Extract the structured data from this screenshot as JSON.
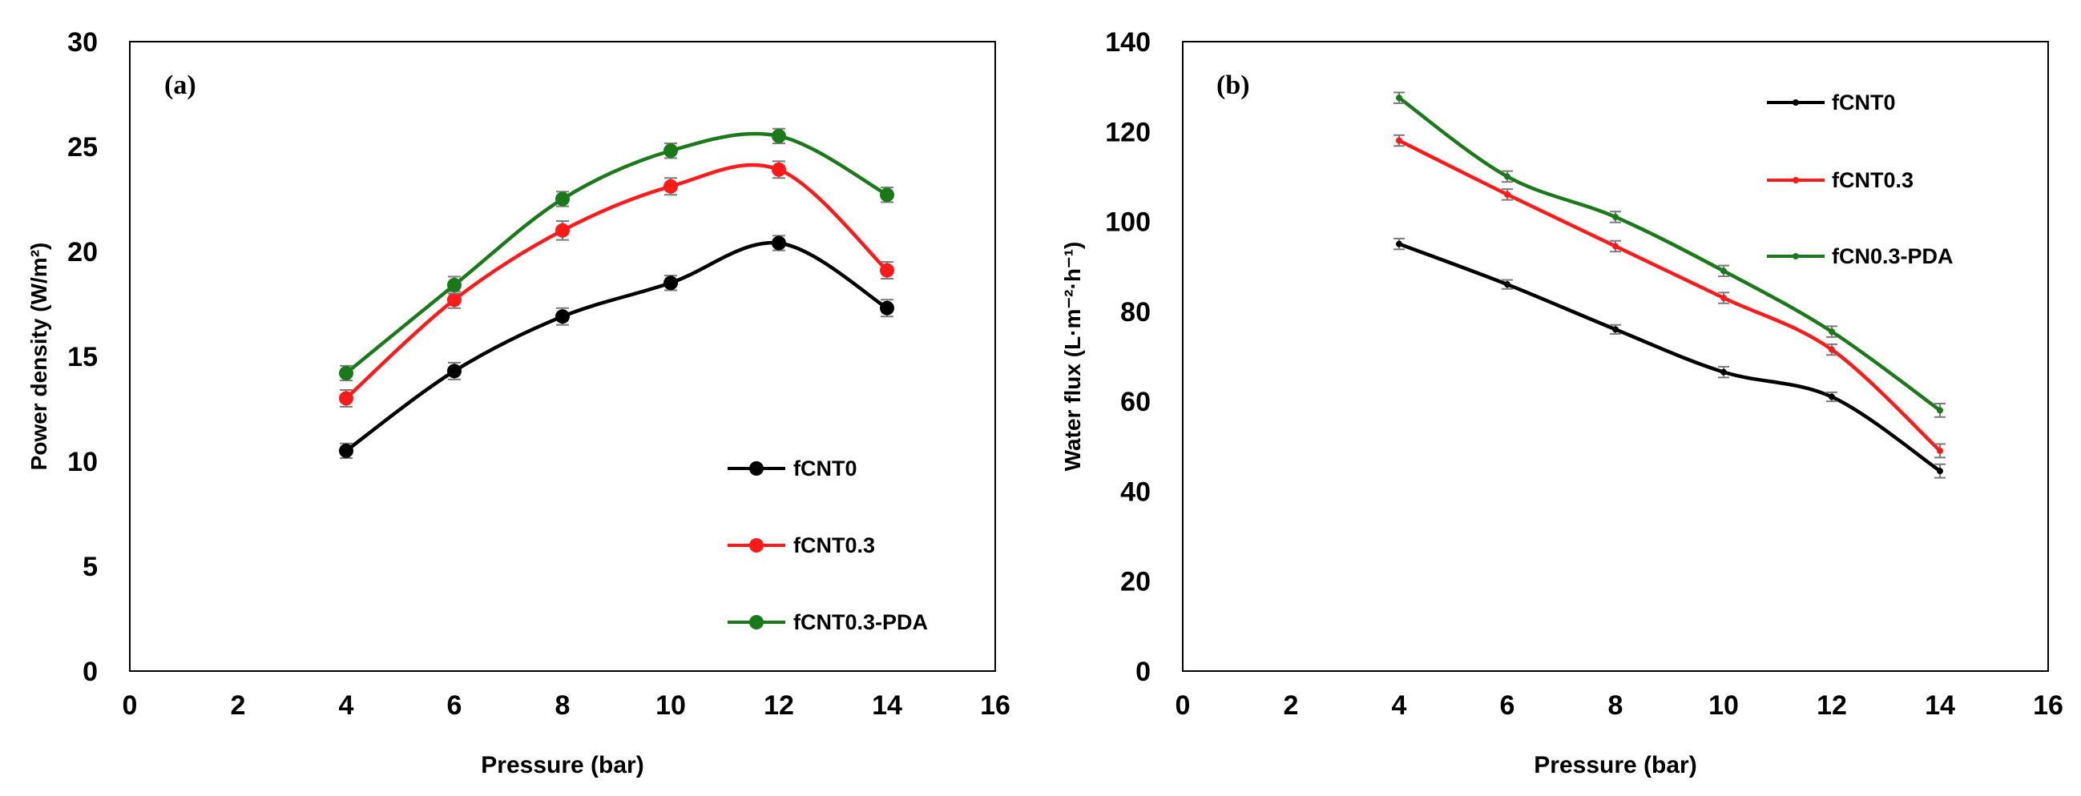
{
  "chart_data": [
    {
      "type": "line",
      "panel_label": "(a)",
      "xlabel": "Pressure (bar)",
      "ylabel": "Power density  (W/m²)",
      "xlim": [
        0,
        16
      ],
      "ylim": [
        0,
        30
      ],
      "xticks": [
        0,
        2,
        4,
        6,
        8,
        10,
        12,
        14,
        16
      ],
      "yticks": [
        0,
        5,
        10,
        15,
        20,
        25,
        30
      ],
      "grid": false,
      "legend_position": "bottom-right",
      "marker": "circle-large",
      "x": [
        4,
        6,
        8,
        10,
        12,
        14
      ],
      "series": [
        {
          "name": "fCNT0",
          "color": "#000000",
          "values": [
            10.5,
            14.3,
            16.9,
            18.5,
            20.4,
            17.3
          ],
          "error": [
            0.35,
            0.4,
            0.4,
            0.35,
            0.35,
            0.4
          ]
        },
        {
          "name": "fCNT0.3",
          "color": "#ff1a1a",
          "values": [
            13.0,
            17.7,
            21.0,
            23.1,
            23.9,
            19.1
          ],
          "error": [
            0.4,
            0.4,
            0.45,
            0.4,
            0.4,
            0.4
          ]
        },
        {
          "name": "fCNT0.3-PDA",
          "color": "#1a7a1a",
          "values": [
            14.2,
            18.4,
            22.5,
            24.8,
            25.5,
            22.7
          ],
          "error": [
            0.35,
            0.4,
            0.35,
            0.35,
            0.35,
            0.35
          ]
        }
      ]
    },
    {
      "type": "line",
      "panel_label": "(b)",
      "xlabel": "Pressure (bar)",
      "ylabel": "Water flux (L·m⁻²·h⁻¹)",
      "xlim": [
        0,
        16
      ],
      "ylim": [
        0,
        140
      ],
      "xticks": [
        0,
        2,
        4,
        6,
        8,
        10,
        12,
        14,
        16
      ],
      "yticks": [
        0,
        20,
        40,
        60,
        80,
        100,
        120,
        140
      ],
      "grid": false,
      "legend_position": "top-right",
      "marker": "circle-small",
      "x": [
        4,
        6,
        8,
        10,
        12,
        14
      ],
      "series": [
        {
          "name": "fCNT0",
          "color": "#000000",
          "values": [
            95,
            86,
            76,
            66.5,
            61,
            44.5
          ],
          "error": [
            1.2,
            1.0,
            1.0,
            1.2,
            1.0,
            1.5
          ]
        },
        {
          "name": "fCNT0.3",
          "color": "#ff1a1a",
          "values": [
            118,
            106,
            94.5,
            83,
            71.5,
            49
          ],
          "error": [
            1.2,
            1.2,
            1.2,
            1.2,
            1.2,
            1.5
          ]
        },
        {
          "name": "fCN0.3-PDA",
          "color": "#1a7a1a",
          "values": [
            127.5,
            110,
            101,
            89,
            75.5,
            58
          ],
          "error": [
            1.2,
            1.2,
            1.2,
            1.2,
            1.2,
            1.5
          ]
        }
      ]
    }
  ]
}
